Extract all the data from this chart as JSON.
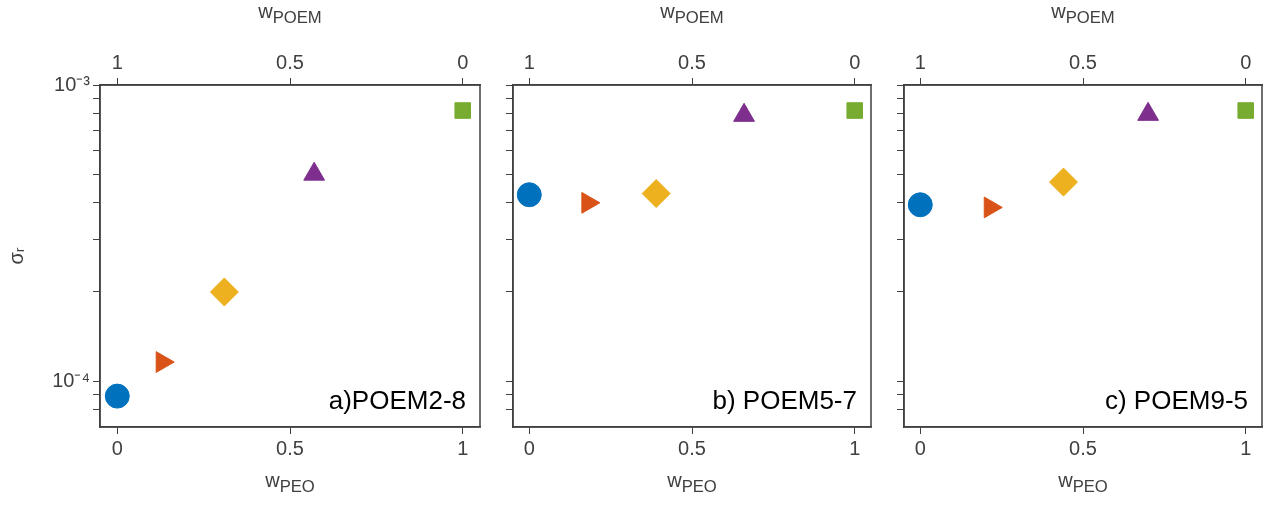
{
  "chart_data": [
    {
      "type": "scatter",
      "xlabel": "w$_{PEO}$",
      "x2label": "w$_{POEM}$",
      "ylabel": "σᵣ",
      "log": "y",
      "xlim": [
        -0.05,
        1.05
      ],
      "xticks": [
        0,
        0.5,
        1
      ],
      "x2lim": [
        1.05,
        -0.05
      ],
      "x2ticks": [
        1,
        0.5,
        0
      ],
      "ylim": [
        7e-05,
        0.001
      ],
      "yticks": [
        {
          "value": 8e-05,
          "label": null
        },
        {
          "value": 9e-05,
          "label": null
        },
        {
          "value": 0.0001,
          "label": "10⁻⁴"
        },
        {
          "value": 0.0002,
          "label": null
        },
        {
          "value": 0.0003,
          "label": null
        },
        {
          "value": 0.0004,
          "label": null
        },
        {
          "value": 0.0005,
          "label": null
        },
        {
          "value": 0.0006,
          "label": null
        },
        {
          "value": 0.0007,
          "label": null
        },
        {
          "value": 0.0008,
          "label": null
        },
        {
          "value": 0.0009,
          "label": null
        },
        {
          "value": 0.001,
          "label": "10⁻³"
        }
      ],
      "annotations": [
        "a)POEM2-8"
      ],
      "series": [
        {
          "color": "#0072bd",
          "marker": "circle",
          "x": [
            0
          ],
          "values": [
            8.9e-05
          ]
        },
        {
          "color": "#d95319",
          "marker": "triangle-right",
          "x": [
            0.13
          ],
          "values": [
            0.000116
          ]
        },
        {
          "color": "#edb120",
          "marker": "diamond",
          "x": [
            0.31
          ],
          "values": [
            0.0002
          ]
        },
        {
          "color": "#7e2f8e",
          "marker": "triangle",
          "x": [
            0.57
          ],
          "values": [
            0.0005
          ]
        },
        {
          "color": "#77ac30",
          "marker": "square",
          "x": [
            1
          ],
          "values": [
            0.00082
          ]
        }
      ]
    },
    {
      "type": "scatter",
      "xlabel": "w$_{PEO}$",
      "x2label": "w$_{POEM}$",
      "log": "y",
      "tick_labels": "x",
      "xlim": [
        -0.05,
        1.05
      ],
      "xticks": [
        0,
        0.5,
        1
      ],
      "x2lim": [
        1.05,
        -0.05
      ],
      "x2ticks": [
        1,
        0.5,
        0
      ],
      "ylim": [
        7e-05,
        0.001
      ],
      "yticks": [
        {
          "value": 8e-05,
          "label": null
        },
        {
          "value": 9e-05,
          "label": null
        },
        {
          "value": 0.0001,
          "label": null
        },
        {
          "value": 0.0002,
          "label": null
        },
        {
          "value": 0.0003,
          "label": null
        },
        {
          "value": 0.0004,
          "label": null
        },
        {
          "value": 0.0005,
          "label": null
        },
        {
          "value": 0.0006,
          "label": null
        },
        {
          "value": 0.0007,
          "label": null
        },
        {
          "value": 0.0008,
          "label": null
        },
        {
          "value": 0.0009,
          "label": null
        },
        {
          "value": 0.001,
          "label": null
        }
      ],
      "annotations": [
        "b) POEM5-7"
      ],
      "series": [
        {
          "color": "#0072bd",
          "marker": "circle",
          "x": [
            0
          ],
          "values": [
            0.000426
          ]
        },
        {
          "color": "#d95319",
          "marker": "triangle-right",
          "x": [
            0.18
          ],
          "values": [
            0.0004
          ]
        },
        {
          "color": "#edb120",
          "marker": "diamond",
          "x": [
            0.39
          ],
          "values": [
            0.00043
          ]
        },
        {
          "color": "#7e2f8e",
          "marker": "triangle",
          "x": [
            0.66
          ],
          "values": [
            0.00079
          ]
        },
        {
          "color": "#77ac30",
          "marker": "square",
          "x": [
            1
          ],
          "values": [
            0.00082
          ]
        }
      ]
    },
    {
      "type": "scatter",
      "xlabel": "w$_{PEO}$",
      "x2label": "w$_{POEM}$",
      "log": "y",
      "tick_labels": "x",
      "xlim": [
        -0.05,
        1.05
      ],
      "xticks": [
        0,
        0.5,
        1
      ],
      "x2lim": [
        1.05,
        -0.05
      ],
      "x2ticks": [
        1,
        0.5,
        0
      ],
      "ylim": [
        7e-05,
        0.001
      ],
      "yticks": [
        {
          "value": 8e-05,
          "label": null
        },
        {
          "value": 9e-05,
          "label": null
        },
        {
          "value": 0.0001,
          "label": null
        },
        {
          "value": 0.0002,
          "label": null
        },
        {
          "value": 0.0003,
          "label": null
        },
        {
          "value": 0.0004,
          "label": null
        },
        {
          "value": 0.0005,
          "label": null
        },
        {
          "value": 0.0006,
          "label": null
        },
        {
          "value": 0.0007,
          "label": null
        },
        {
          "value": 0.0008,
          "label": null
        },
        {
          "value": 0.0009,
          "label": null
        },
        {
          "value": 0.001,
          "label": null
        }
      ],
      "annotations": [
        "c) POEM9-5"
      ],
      "series": [
        {
          "color": "#0072bd",
          "marker": "circle",
          "x": [
            0
          ],
          "values": [
            0.000394
          ]
        },
        {
          "color": "#d95319",
          "marker": "triangle-right",
          "x": [
            0.215
          ],
          "values": [
            0.000386
          ]
        },
        {
          "color": "#edb120",
          "marker": "diamond",
          "x": [
            0.44
          ],
          "values": [
            0.00047
          ]
        },
        {
          "color": "#7e2f8e",
          "marker": "triangle",
          "x": [
            0.7
          ],
          "values": [
            0.000796
          ]
        },
        {
          "color": "#77ac30",
          "marker": "square",
          "x": [
            1
          ],
          "values": [
            0.00082
          ]
        }
      ]
    }
  ]
}
